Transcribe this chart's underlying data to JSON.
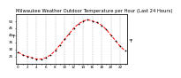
{
  "title": "Milwaukee Weather Outdoor Temperature per Hour (Last 24 Hours)",
  "hours": [
    0,
    1,
    2,
    3,
    4,
    5,
    6,
    7,
    8,
    9,
    10,
    11,
    12,
    13,
    14,
    15,
    16,
    17,
    18,
    19,
    20,
    21,
    22,
    23
  ],
  "temps": [
    28,
    26,
    25,
    24,
    23,
    23,
    24,
    26,
    29,
    33,
    37,
    41,
    45,
    48,
    50,
    51,
    50,
    49,
    47,
    44,
    40,
    36,
    32,
    29
  ],
  "line_color": "#ff0000",
  "marker_color": "#000000",
  "bg_color": "#ffffff",
  "ylim": [
    20,
    55
  ],
  "yticks": [
    25,
    30,
    35,
    40,
    45,
    50
  ],
  "ylabel": "°F",
  "grid_color": "#888888",
  "title_fontsize": 3.8,
  "tick_fontsize": 3.0,
  "ylabel_fontsize": 3.5
}
